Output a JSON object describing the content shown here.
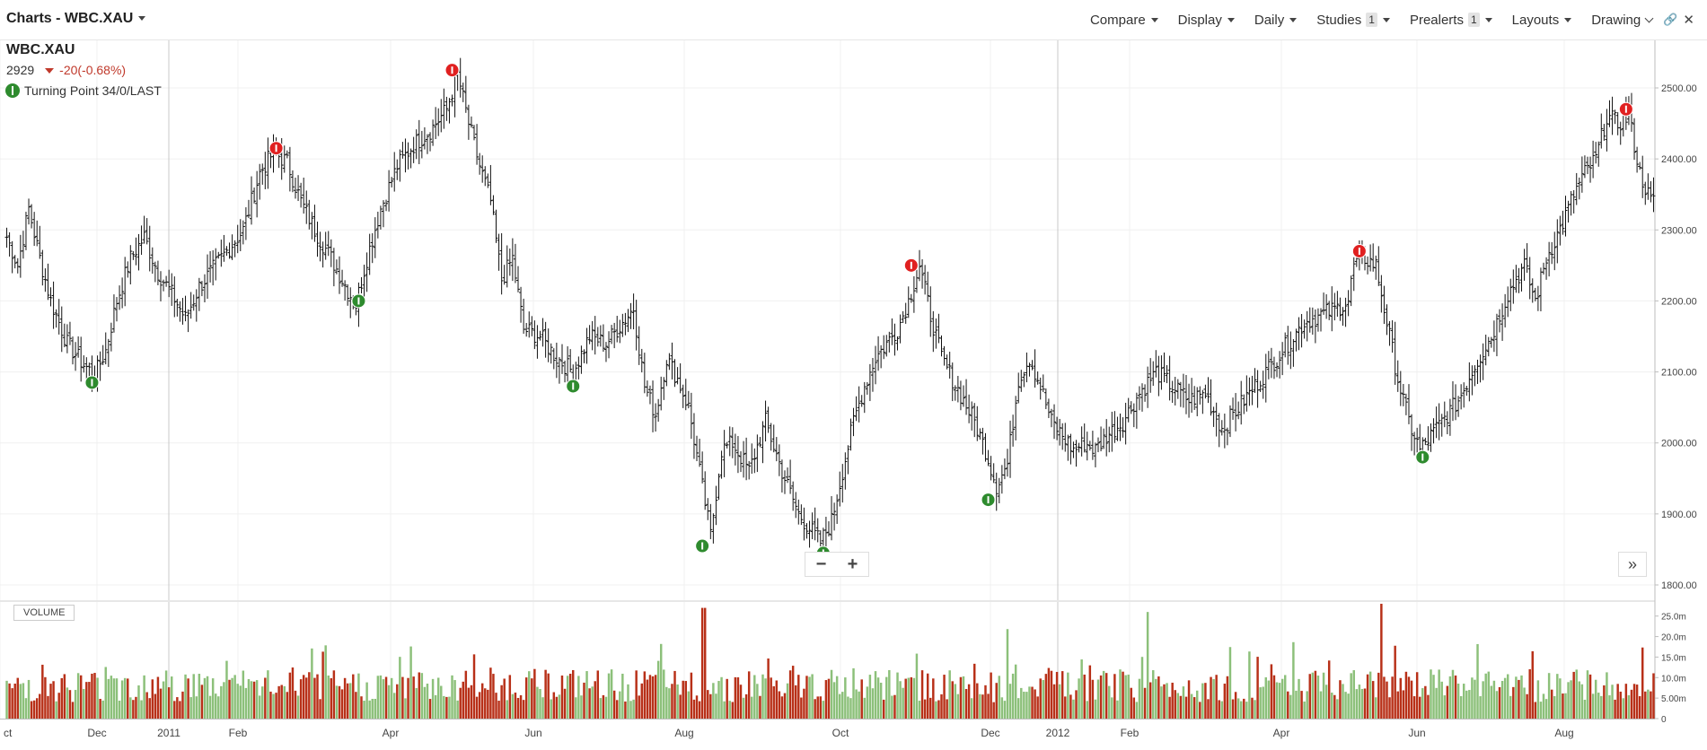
{
  "header": {
    "title": "Charts - WBC.XAU",
    "menus": [
      {
        "label": "Compare",
        "badge": ""
      },
      {
        "label": "Display",
        "badge": ""
      },
      {
        "label": "Daily",
        "badge": ""
      },
      {
        "label": "Studies",
        "badge": "1"
      },
      {
        "label": "Prealerts",
        "badge": "1"
      },
      {
        "label": "Layouts",
        "badge": ""
      }
    ],
    "drawing_label": "Drawing",
    "icons": [
      "link-icon",
      "close-icon"
    ]
  },
  "legend": {
    "symbol": "WBC.XAU",
    "last": "2929",
    "change": "-20(-0.68%)",
    "study": "Turning Point 34/0/LAST"
  },
  "controls": {
    "zoom_out": "−",
    "zoom_in": "+",
    "expand": "»"
  },
  "volume_label": "VOLUME",
  "colors": {
    "up": "#8cc07a",
    "down": "#b83018",
    "signal_buy": "#2e8b2e",
    "signal_sell": "#e02020"
  },
  "chart_data": {
    "type": "ohlc",
    "ylim": [
      1780,
      2540
    ],
    "yticks": [
      "2500.00",
      "2400.00",
      "2300.00",
      "2200.00",
      "2100.00",
      "2000.00",
      "1900.00",
      "1800.00"
    ],
    "xticks": [
      "ct",
      "Dec",
      "2011",
      "Feb",
      "Apr",
      "Jun",
      "Aug",
      "Oct",
      "Dec",
      "2012",
      "Feb",
      "Apr",
      "Jun",
      "Aug"
    ],
    "volume_ticks": [
      "25.0m",
      "20.0m",
      "15.0m",
      "10.0m",
      "5.00m",
      "0"
    ],
    "volume_ylim": [
      0,
      28
    ],
    "price_anchors": [
      [
        0,
        2290
      ],
      [
        4,
        2250
      ],
      [
        8,
        2330
      ],
      [
        12,
        2260
      ],
      [
        16,
        2200
      ],
      [
        22,
        2140
      ],
      [
        28,
        2110
      ],
      [
        32,
        2095
      ],
      [
        36,
        2130
      ],
      [
        40,
        2200
      ],
      [
        45,
        2260
      ],
      [
        50,
        2290
      ],
      [
        55,
        2240
      ],
      [
        60,
        2210
      ],
      [
        65,
        2175
      ],
      [
        70,
        2220
      ],
      [
        78,
        2260
      ],
      [
        86,
        2300
      ],
      [
        92,
        2380
      ],
      [
        97,
        2410
      ],
      [
        102,
        2395
      ],
      [
        107,
        2340
      ],
      [
        112,
        2300
      ],
      [
        118,
        2260
      ],
      [
        124,
        2215
      ],
      [
        127,
        2195
      ],
      [
        131,
        2260
      ],
      [
        136,
        2330
      ],
      [
        142,
        2390
      ],
      [
        148,
        2420
      ],
      [
        154,
        2440
      ],
      [
        160,
        2470
      ],
      [
        164,
        2520
      ],
      [
        168,
        2450
      ],
      [
        172,
        2390
      ],
      [
        176,
        2340
      ],
      [
        180,
        2230
      ],
      [
        184,
        2260
      ],
      [
        188,
        2160
      ],
      [
        194,
        2150
      ],
      [
        200,
        2120
      ],
      [
        206,
        2100
      ],
      [
        212,
        2150
      ],
      [
        218,
        2140
      ],
      [
        224,
        2170
      ],
      [
        228,
        2190
      ],
      [
        232,
        2080
      ],
      [
        236,
        2040
      ],
      [
        240,
        2120
      ],
      [
        244,
        2090
      ],
      [
        248,
        2050
      ],
      [
        252,
        1960
      ],
      [
        256,
        1870
      ],
      [
        260,
        1990
      ],
      [
        264,
        2000
      ],
      [
        270,
        1960
      ],
      [
        276,
        2030
      ],
      [
        282,
        1960
      ],
      [
        288,
        1900
      ],
      [
        292,
        1880
      ],
      [
        296,
        1860
      ],
      [
        300,
        1890
      ],
      [
        304,
        1960
      ],
      [
        308,
        2030
      ],
      [
        312,
        2080
      ],
      [
        316,
        2120
      ],
      [
        320,
        2140
      ],
      [
        324,
        2160
      ],
      [
        328,
        2200
      ],
      [
        332,
        2250
      ],
      [
        336,
        2180
      ],
      [
        340,
        2120
      ],
      [
        344,
        2090
      ],
      [
        348,
        2060
      ],
      [
        352,
        2030
      ],
      [
        356,
        1990
      ],
      [
        360,
        1940
      ],
      [
        364,
        1970
      ],
      [
        368,
        2090
      ],
      [
        372,
        2120
      ],
      [
        376,
        2080
      ],
      [
        380,
        2030
      ],
      [
        384,
        2010
      ],
      [
        388,
        1990
      ],
      [
        392,
        2000
      ],
      [
        396,
        1990
      ],
      [
        400,
        2010
      ],
      [
        406,
        2030
      ],
      [
        412,
        2070
      ],
      [
        418,
        2100
      ],
      [
        424,
        2080
      ],
      [
        430,
        2060
      ],
      [
        436,
        2070
      ],
      [
        442,
        2020
      ],
      [
        448,
        2050
      ],
      [
        454,
        2080
      ],
      [
        460,
        2110
      ],
      [
        466,
        2140
      ],
      [
        472,
        2170
      ],
      [
        478,
        2180
      ],
      [
        484,
        2190
      ],
      [
        488,
        2200
      ],
      [
        490,
        2250
      ],
      [
        494,
        2260
      ],
      [
        498,
        2250
      ],
      [
        502,
        2170
      ],
      [
        506,
        2090
      ],
      [
        510,
        2030
      ],
      [
        514,
        1990
      ],
      [
        518,
        2010
      ],
      [
        522,
        2030
      ],
      [
        528,
        2060
      ],
      [
        534,
        2110
      ],
      [
        540,
        2150
      ],
      [
        546,
        2210
      ],
      [
        552,
        2250
      ],
      [
        556,
        2200
      ],
      [
        560,
        2260
      ],
      [
        566,
        2310
      ],
      [
        570,
        2350
      ],
      [
        574,
        2380
      ],
      [
        578,
        2400
      ],
      [
        582,
        2460
      ],
      [
        586,
        2450
      ],
      [
        590,
        2460
      ],
      [
        594,
        2380
      ],
      [
        598,
        2340
      ]
    ],
    "signals": [
      {
        "type": "buy",
        "index": 31,
        "price": 2090
      },
      {
        "type": "sell",
        "index": 98,
        "price": 2410
      },
      {
        "type": "buy",
        "index": 128,
        "price": 2205
      },
      {
        "type": "sell",
        "index": 162,
        "price": 2520
      },
      {
        "type": "buy",
        "index": 206,
        "price": 2085
      },
      {
        "type": "buy",
        "index": 253,
        "price": 1860
      },
      {
        "type": "buy",
        "index": 297,
        "price": 1850
      },
      {
        "type": "sell",
        "index": 329,
        "price": 2245
      },
      {
        "type": "buy",
        "index": 357,
        "price": 1925
      },
      {
        "type": "sell",
        "index": 492,
        "price": 2265
      },
      {
        "type": "buy",
        "index": 515,
        "price": 1985
      },
      {
        "type": "sell",
        "index": 589,
        "price": 2465
      }
    ]
  }
}
